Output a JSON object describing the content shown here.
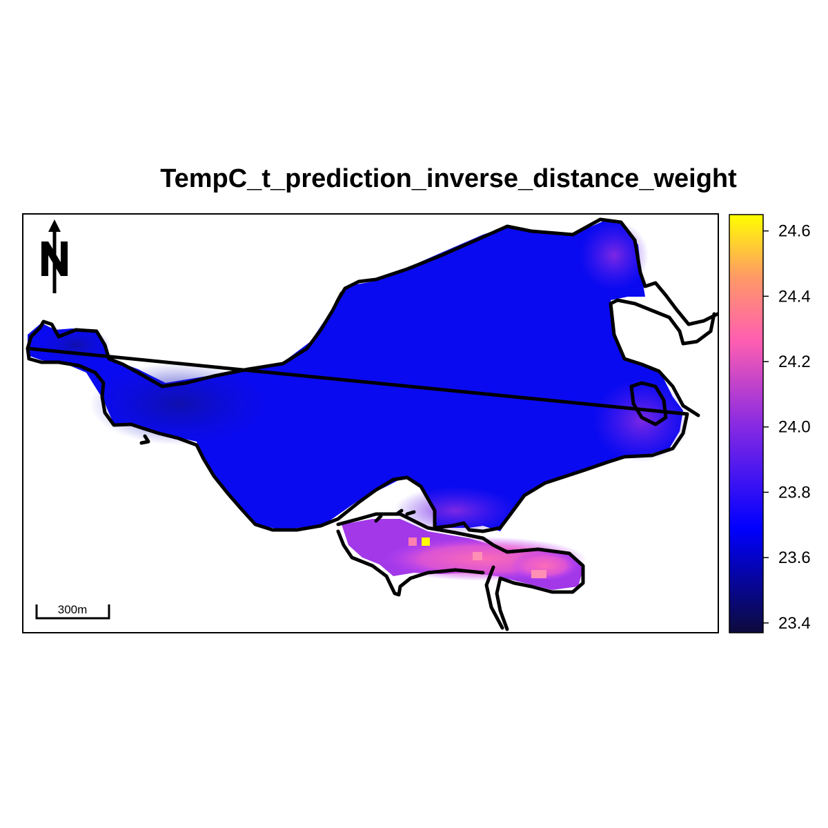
{
  "title": "TempC_t_prediction_inverse_distance_weight",
  "north_arrow": {
    "icon": "north-arrow-icon",
    "letter": "N"
  },
  "scale_bar": {
    "label": "300m"
  },
  "legend": {
    "min": 23.37,
    "max": 24.65,
    "ticks": [
      "24.6",
      "24.4",
      "24.2",
      "24.0",
      "23.8",
      "23.6",
      "23.4"
    ],
    "colors": [
      "#0d0b3b",
      "#0000ff",
      "#8a2be2",
      "#ff5fb0",
      "#ff9966",
      "#ffff00"
    ]
  }
}
